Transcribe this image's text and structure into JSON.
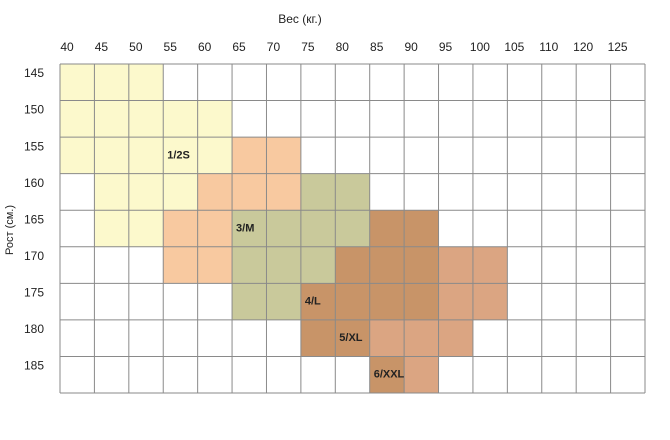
{
  "x_title": "Вес (кг.)",
  "y_title": "Рост (см.)",
  "columns": [
    "40",
    "45",
    "50",
    "55",
    "60",
    "65",
    "70",
    "75",
    "80",
    "85",
    "90",
    "95",
    "100",
    "105",
    "110",
    "120",
    "125"
  ],
  "extra_column": "125",
  "rows": [
    "145",
    "150",
    "155",
    "160",
    "165",
    "170",
    "175",
    "180",
    "185"
  ],
  "zones": [
    {
      "label": "1/2S",
      "color": "#fcf9cc"
    },
    {
      "label": "3/M",
      "color": "#f8c9a0"
    },
    {
      "label": "4/L",
      "color": "#c9c99b"
    },
    {
      "label": "5/XL",
      "color": "#c89468"
    },
    {
      "label": "6/XXL",
      "color": "#dba582"
    }
  ],
  "grid": [
    [
      "#fcf9cc",
      "#fcf9cc",
      "#fcf9cc",
      null,
      null,
      null,
      null,
      null,
      null,
      null,
      null,
      null,
      null,
      null,
      null,
      null,
      null
    ],
    [
      "#fcf9cc",
      "#fcf9cc",
      "#fcf9cc",
      "#fcf9cc",
      "#fcf9cc",
      null,
      null,
      null,
      null,
      null,
      null,
      null,
      null,
      null,
      null,
      null,
      null
    ],
    [
      "#fcf9cc",
      "#fcf9cc",
      "#fcf9cc",
      "#fcf9cc",
      "#fcf9cc",
      "#f8c9a0",
      "#f8c9a0",
      null,
      null,
      null,
      null,
      null,
      null,
      null,
      null,
      null,
      null
    ],
    [
      null,
      "#fcf9cc",
      "#fcf9cc",
      "#fcf9cc",
      "#f8c9a0",
      "#f8c9a0",
      "#f8c9a0",
      "#c9c99b",
      "#c9c99b",
      null,
      null,
      null,
      null,
      null,
      null,
      null,
      null
    ],
    [
      null,
      "#fcf9cc",
      "#fcf9cc",
      "#f8c9a0",
      "#f8c9a0",
      "#c9c99b",
      "#c9c99b",
      "#c9c99b",
      "#c9c99b",
      "#c89468",
      "#c89468",
      null,
      null,
      null,
      null,
      null,
      null
    ],
    [
      null,
      null,
      null,
      "#f8c9a0",
      "#f8c9a0",
      "#c9c99b",
      "#c9c99b",
      "#c9c99b",
      "#c89468",
      "#c89468",
      "#c89468",
      "#dba582",
      "#dba582",
      null,
      null,
      null,
      null
    ],
    [
      null,
      null,
      null,
      null,
      null,
      "#c9c99b",
      "#c9c99b",
      "#c89468",
      "#c89468",
      "#c89468",
      "#c89468",
      "#dba582",
      "#dba582",
      null,
      null,
      null,
      null
    ],
    [
      null,
      null,
      null,
      null,
      null,
      null,
      null,
      "#c89468",
      "#c89468",
      "#dba582",
      "#dba582",
      "#dba582",
      null,
      null,
      null,
      null,
      null
    ],
    [
      null,
      null,
      null,
      null,
      null,
      null,
      null,
      null,
      null,
      "#c89468",
      "#dba582",
      null,
      null,
      null,
      null,
      null,
      null
    ]
  ]
}
